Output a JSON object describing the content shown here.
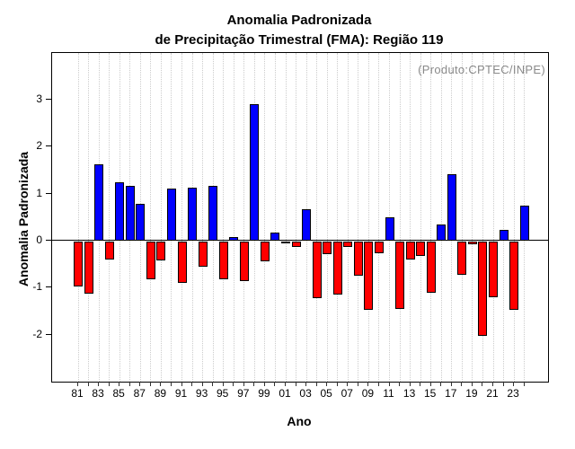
{
  "title": {
    "line1": "Anomalia Padronizada",
    "line2": "de Precipitação Trimestral (FMA): Região 119"
  },
  "watermark": "(Produto:CPTEC/INPE)",
  "chart_data": {
    "type": "bar",
    "title": "Anomalia Padronizada de Precipitação Trimestral (FMA): Região 119",
    "xlabel": "Ano",
    "ylabel": "Anomalia Padronizada",
    "ylim": [
      -3,
      4
    ],
    "ytick_values": [
      3,
      2,
      1,
      0,
      -1,
      -2
    ],
    "ytick_labels": [
      "3",
      "2",
      "1",
      "0",
      "-1",
      "-2"
    ],
    "grid": "vertical-dotted",
    "legend": null,
    "x_labels_shown_every": 2,
    "categories": [
      "81",
      "82",
      "83",
      "84",
      "85",
      "86",
      "87",
      "88",
      "89",
      "90",
      "91",
      "92",
      "93",
      "94",
      "95",
      "96",
      "97",
      "98",
      "99",
      "00",
      "01",
      "02",
      "03",
      "04",
      "05",
      "06",
      "07",
      "08",
      "09",
      "10",
      "11",
      "12",
      "13",
      "14",
      "15",
      "16",
      "17",
      "18",
      "19",
      "20",
      "21",
      "22",
      "23",
      "24"
    ],
    "values": [
      -0.96,
      -1.11,
      1.63,
      -0.38,
      1.25,
      1.16,
      0.78,
      -0.81,
      -0.4,
      1.1,
      -0.88,
      1.13,
      -0.53,
      1.17,
      -0.8,
      0.07,
      -0.84,
      2.9,
      -0.42,
      0.18,
      -0.03,
      -0.12,
      0.66,
      -1.2,
      -0.26,
      -1.12,
      -0.11,
      -0.73,
      -1.45,
      -0.24,
      0.5,
      -1.43,
      -0.39,
      -0.3,
      -1.09,
      0.34,
      1.42,
      -0.7,
      -0.06,
      -2.01,
      -1.18,
      0.22,
      -1.45,
      0.75
    ],
    "positive_color": "#0000ff",
    "negative_color": "#ff0000",
    "bar_border_color": "#000000",
    "gridline_color": "#cccccc",
    "watermark_color": "#8a8a8a"
  }
}
